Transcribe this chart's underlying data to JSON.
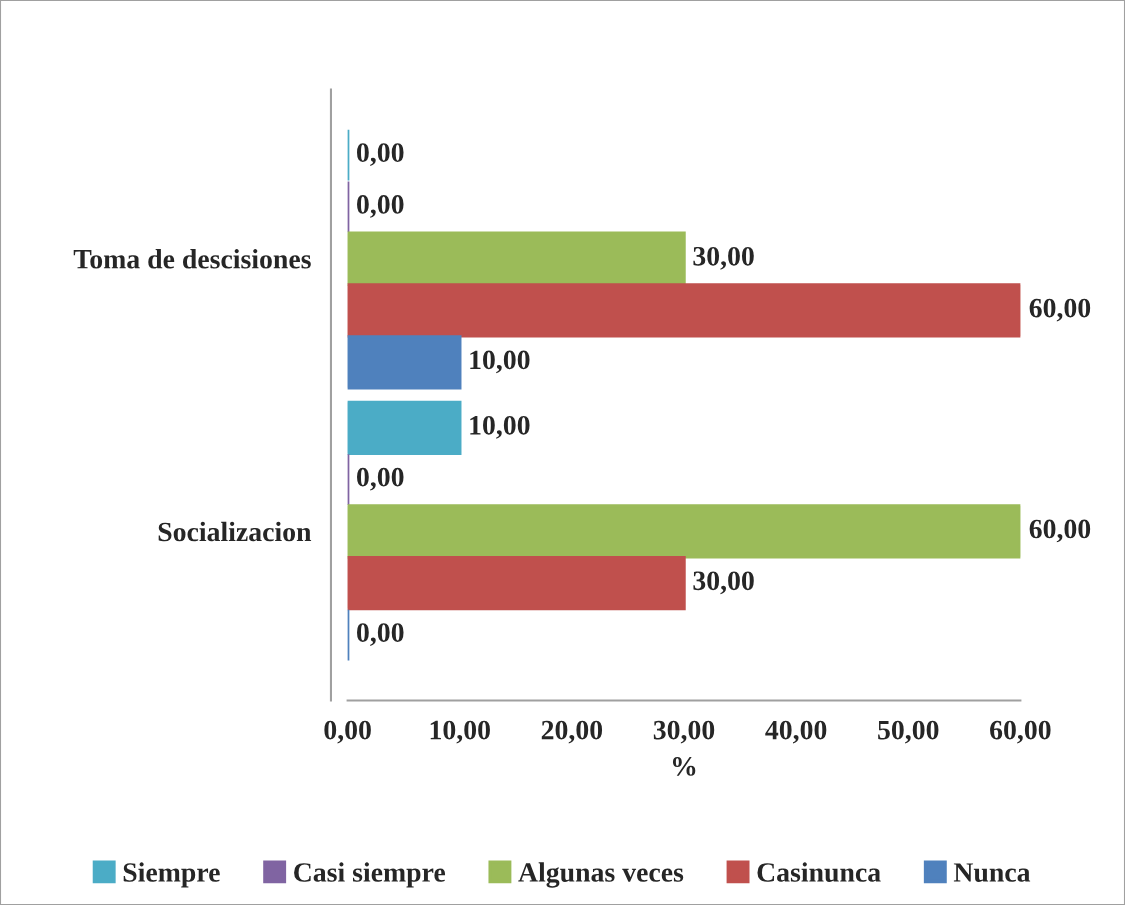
{
  "chart_data": {
    "type": "bar",
    "orientation": "horizontal",
    "categories": [
      "Toma de descisiones",
      "Socializacion"
    ],
    "series": [
      {
        "name": "Siempre",
        "color": "#4bacc6",
        "values": [
          0,
          10
        ],
        "value_labels": [
          "0,00",
          "10,00"
        ]
      },
      {
        "name": "Casi siempre",
        "color": "#8064a2",
        "values": [
          0,
          0
        ],
        "value_labels": [
          "0,00",
          "0,00"
        ]
      },
      {
        "name": "Algunas veces",
        "color": "#9bbb59",
        "values": [
          30,
          60
        ],
        "value_labels": [
          "30,00",
          "60,00"
        ]
      },
      {
        "name": "Casinunca",
        "color": "#c0504d",
        "values": [
          60,
          30
        ],
        "value_labels": [
          "60,00",
          "30,00"
        ]
      },
      {
        "name": "Nunca",
        "color": "#4f81bd",
        "values": [
          10,
          0
        ],
        "value_labels": [
          "10,00",
          "0,00"
        ]
      }
    ],
    "xlabel": "%",
    "xlim": [
      0,
      60
    ],
    "xticks": [
      {
        "value": 0,
        "label": "0,00"
      },
      {
        "value": 10,
        "label": "10,00"
      },
      {
        "value": 20,
        "label": "20,00"
      },
      {
        "value": 30,
        "label": "30,00"
      },
      {
        "value": 40,
        "label": "40,00"
      },
      {
        "value": 50,
        "label": "50,00"
      },
      {
        "value": 60,
        "label": "60,00"
      }
    ],
    "grid": false,
    "legend": "bottom"
  }
}
